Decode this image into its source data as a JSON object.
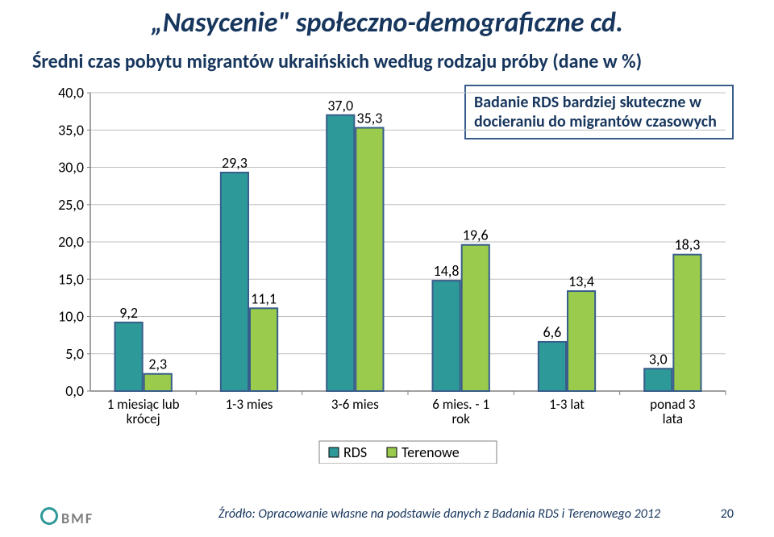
{
  "title": "„Nasycenie\" społeczno-demograficzne cd.",
  "subtitle": "Średni czas pobytu migrantów ukraińskich według rodzaju próby (dane w %)",
  "callout": "Badanie RDS bardziej skuteczne w docieraniu do migrantów czasowych",
  "chart": {
    "type": "bar",
    "categories": [
      "1 miesiąc lub krócej",
      "1-3 mies",
      "3-6 mies",
      "6 mies. - 1 rok",
      "1-3 lat",
      "ponad 3 lata"
    ],
    "series": [
      {
        "name": "RDS",
        "color": "#2e9999",
        "values": [
          9.2,
          29.3,
          37.0,
          14.8,
          6.6,
          3.0
        ],
        "labels": [
          "9,2",
          "29,3",
          "37,0",
          "14,8",
          "6,6",
          "3,0"
        ]
      },
      {
        "name": "Terenowe",
        "color": "#9acb4c",
        "values": [
          2.3,
          11.1,
          35.3,
          19.6,
          13.4,
          18.3
        ],
        "labels": [
          "2,3",
          "11,1",
          "35,3",
          "19,6",
          "13,4",
          "18,3"
        ]
      }
    ],
    "ylim": [
      0,
      40
    ],
    "ytick_step": 5,
    "ytick_labels": [
      "0,0",
      "5,0",
      "10,0",
      "15,0",
      "20,0",
      "25,0",
      "30,0",
      "35,0",
      "40,0"
    ],
    "bar_border": "#385d8a",
    "axis_color": "#808080",
    "grid_color": "#bfbfbf",
    "legend_border": "#808080",
    "label_fontsize": 18,
    "cat_fontsize": 17
  },
  "footer": {
    "source": "Źródło: Opracowanie własne na podstawie danych z Badania RDS i Terenowego 2012",
    "page": "20",
    "logo": "BMF"
  }
}
